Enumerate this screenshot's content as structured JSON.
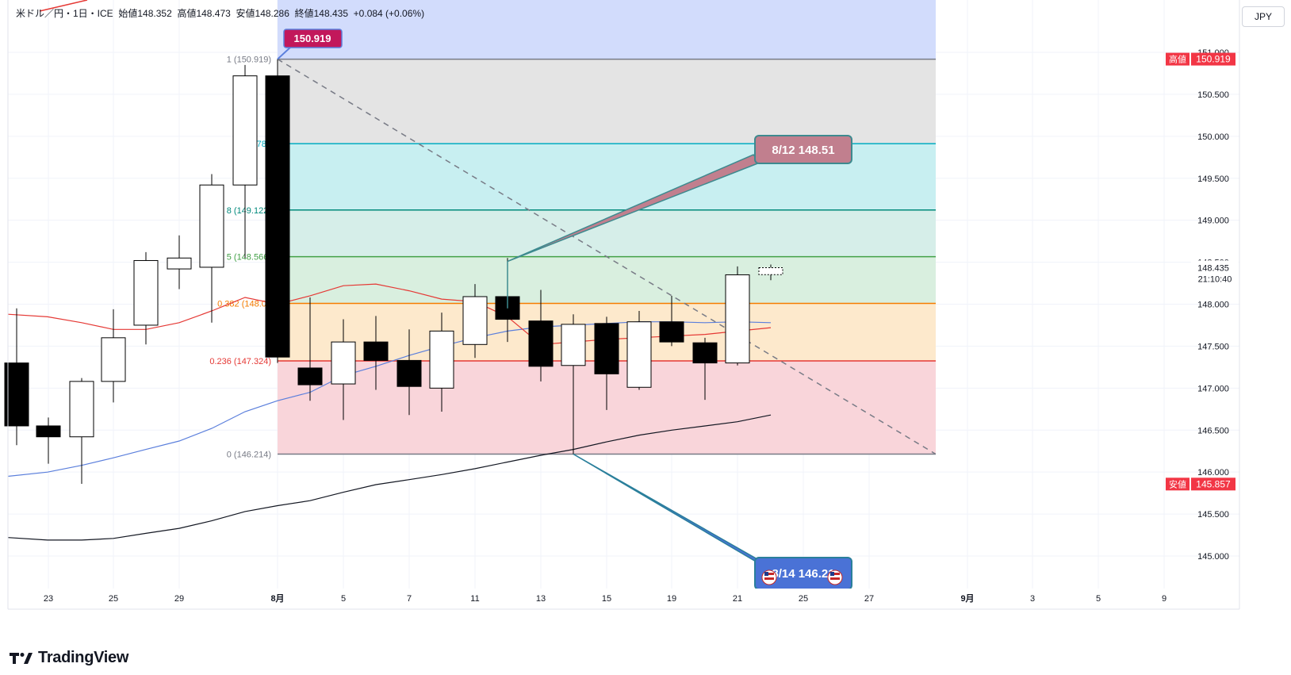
{
  "header": {
    "symbol": "米ドル／円・1日・ICE",
    "open_label": "始値",
    "open": "148.352",
    "high_label": "高値",
    "high": "148.473",
    "low_label": "安値",
    "low": "148.286",
    "close_label": "終値",
    "close": "148.435",
    "change": "+0.084 (+0.06%)"
  },
  "currency": "JPY",
  "brand": "TradingView",
  "colors": {
    "up": "#ffffff",
    "down": "#000000",
    "wick": "#000000",
    "ma_red": "#e53935",
    "ma_blue": "#5b7fdc",
    "ma_black": "#131722",
    "high_label_bg": "#f23645",
    "low_label_bg": "#f23645"
  },
  "chart_data": {
    "type": "candlestick",
    "symbol": "USD/JPY",
    "interval": "1D",
    "ylim": [
      144.65,
      151.55
    ],
    "y_ticks": [
      "151.000",
      "150.500",
      "150.000",
      "149.500",
      "149.000",
      "148.500",
      "148.000",
      "147.500",
      "147.000",
      "146.500",
      "146.000",
      "145.500",
      "145.000"
    ],
    "x_ticks": [
      "23",
      "25",
      "29",
      "8月",
      "5",
      "7",
      "11",
      "13",
      "15",
      "19",
      "21",
      "25",
      "27",
      "9月",
      "3",
      "5",
      "9"
    ],
    "candles": [
      {
        "o": 147.3,
        "h": 147.95,
        "l": 146.32,
        "c": 146.55
      },
      {
        "o": 146.55,
        "h": 146.65,
        "l": 146.1,
        "c": 146.42
      },
      {
        "o": 146.42,
        "h": 147.12,
        "l": 145.86,
        "c": 147.08
      },
      {
        "o": 147.08,
        "h": 147.94,
        "l": 146.83,
        "c": 147.6
      },
      {
        "o": 147.75,
        "h": 148.62,
        "l": 147.52,
        "c": 148.52
      },
      {
        "o": 148.42,
        "h": 148.82,
        "l": 148.18,
        "c": 148.55
      },
      {
        "o": 148.44,
        "h": 149.55,
        "l": 147.78,
        "c": 149.42
      },
      {
        "o": 149.42,
        "h": 150.85,
        "l": 148.55,
        "c": 150.72
      },
      {
        "o": 150.72,
        "h": 150.919,
        "l": 147.3,
        "c": 147.37
      },
      {
        "o": 147.24,
        "h": 148.08,
        "l": 146.85,
        "c": 147.04
      },
      {
        "o": 147.05,
        "h": 147.82,
        "l": 146.62,
        "c": 147.55
      },
      {
        "o": 147.55,
        "h": 147.86,
        "l": 146.98,
        "c": 147.33
      },
      {
        "o": 147.33,
        "h": 147.7,
        "l": 146.68,
        "c": 147.02
      },
      {
        "o": 147.0,
        "h": 147.9,
        "l": 146.72,
        "c": 147.68
      },
      {
        "o": 147.52,
        "h": 148.24,
        "l": 147.36,
        "c": 148.09
      },
      {
        "o": 148.09,
        "h": 148.55,
        "l": 147.55,
        "c": 147.82
      },
      {
        "o": 147.8,
        "h": 148.17,
        "l": 147.08,
        "c": 147.26
      },
      {
        "o": 147.27,
        "h": 147.88,
        "l": 146.214,
        "c": 147.76
      },
      {
        "o": 147.77,
        "h": 147.85,
        "l": 146.74,
        "c": 147.17
      },
      {
        "o": 147.01,
        "h": 147.92,
        "l": 146.98,
        "c": 147.79
      },
      {
        "o": 147.79,
        "h": 148.1,
        "l": 147.5,
        "c": 147.55
      },
      {
        "o": 147.54,
        "h": 147.6,
        "l": 146.86,
        "c": 147.3
      },
      {
        "o": 147.3,
        "h": 148.45,
        "l": 147.27,
        "c": 148.35
      },
      {
        "o": 148.352,
        "h": 148.473,
        "l": 148.286,
        "c": 148.435
      }
    ],
    "candle_x": [
      21,
      61,
      103,
      143,
      184,
      226,
      267,
      309,
      350,
      391,
      433,
      474,
      516,
      557,
      599,
      640,
      682,
      723,
      765,
      806,
      847,
      889,
      930,
      972
    ],
    "ma_red": [
      [
        10,
        147.88
      ],
      [
        60,
        147.85
      ],
      [
        103,
        147.78
      ],
      [
        143,
        147.7
      ],
      [
        184,
        147.7
      ],
      [
        226,
        147.78
      ],
      [
        267,
        147.92
      ],
      [
        309,
        148.08
      ],
      [
        350,
        148.0
      ],
      [
        391,
        148.1
      ],
      [
        433,
        148.22
      ],
      [
        474,
        148.24
      ],
      [
        516,
        148.16
      ],
      [
        557,
        148.06
      ],
      [
        599,
        148.03
      ],
      [
        640,
        147.85
      ],
      [
        682,
        147.52
      ],
      [
        723,
        147.55
      ],
      [
        765,
        147.58
      ],
      [
        806,
        147.6
      ],
      [
        847,
        147.62
      ],
      [
        889,
        147.64
      ],
      [
        930,
        147.68
      ],
      [
        972,
        147.72
      ]
    ],
    "ma_blue": [
      [
        10,
        145.95
      ],
      [
        60,
        146.0
      ],
      [
        103,
        146.08
      ],
      [
        143,
        146.17
      ],
      [
        184,
        146.27
      ],
      [
        226,
        146.37
      ],
      [
        267,
        146.52
      ],
      [
        309,
        146.72
      ],
      [
        350,
        146.85
      ],
      [
        391,
        146.95
      ],
      [
        433,
        147.15
      ],
      [
        474,
        147.26
      ],
      [
        516,
        147.39
      ],
      [
        557,
        147.5
      ],
      [
        599,
        147.6
      ],
      [
        640,
        147.68
      ],
      [
        682,
        147.73
      ],
      [
        723,
        147.75
      ],
      [
        765,
        147.77
      ],
      [
        806,
        147.79
      ],
      [
        847,
        147.79
      ],
      [
        889,
        147.78
      ],
      [
        930,
        147.79
      ],
      [
        972,
        147.78
      ]
    ],
    "ma_black": [
      [
        10,
        145.22
      ],
      [
        60,
        145.19
      ],
      [
        103,
        145.19
      ],
      [
        143,
        145.21
      ],
      [
        184,
        145.27
      ],
      [
        226,
        145.33
      ],
      [
        267,
        145.42
      ],
      [
        309,
        145.53
      ],
      [
        350,
        145.6
      ],
      [
        391,
        145.66
      ],
      [
        433,
        145.76
      ],
      [
        474,
        145.85
      ],
      [
        516,
        145.91
      ],
      [
        557,
        145.97
      ],
      [
        599,
        146.04
      ],
      [
        640,
        146.12
      ],
      [
        682,
        146.2
      ],
      [
        723,
        146.27
      ],
      [
        765,
        146.36
      ],
      [
        806,
        146.44
      ],
      [
        847,
        146.5
      ],
      [
        889,
        146.55
      ],
      [
        930,
        146.6
      ],
      [
        972,
        146.68
      ]
    ],
    "fib": {
      "x_start": 350,
      "x_end": 1180,
      "levels": [
        {
          "label": "1 (150.919)",
          "price": 150.919,
          "color": "#787b86",
          "fill": "#e4e4e4"
        },
        {
          "label": "0.786",
          "price": 149.912,
          "color": "#00acc1",
          "fill": "#c8eff1"
        },
        {
          "label": "8 (149.122)",
          "price": 149.122,
          "color": "#00897b",
          "fill": "#d6eee9"
        },
        {
          "label": "5 (148.566)",
          "price": 148.566,
          "color": "#43a047",
          "fill": "#d9efdf"
        },
        {
          "label": "0.382 (148.01",
          "price": 148.01,
          "color": "#f57c00",
          "fill": "#fde9cc"
        },
        {
          "label": "0.236 (147.324)",
          "price": 147.324,
          "color": "#e53935",
          "fill": "#f9d5da"
        },
        {
          "label": "0 (146.214)",
          "price": 146.214,
          "color": "#787b86",
          "fill": null
        }
      ],
      "top_fill": "#d2dcfc"
    },
    "callouts": [
      {
        "text": "150.919",
        "bg": "#c2185b",
        "border": "#5b7fdc"
      },
      {
        "text": "8/12    148.51",
        "bg": "#c17f8e",
        "border": "#3d8a8f"
      },
      {
        "text": "8/14    146.21",
        "bg": "#4a72d6",
        "border": "#2a7f9b"
      }
    ],
    "price_labels": [
      {
        "tag": "高値",
        "value": "150.919",
        "price": 150.919
      },
      {
        "tag": "安値",
        "value": "145.857",
        "price": 145.857
      }
    ],
    "last_price": {
      "value": "148.435",
      "countdown": "21:10:40",
      "price": 148.435
    },
    "grid": true
  }
}
